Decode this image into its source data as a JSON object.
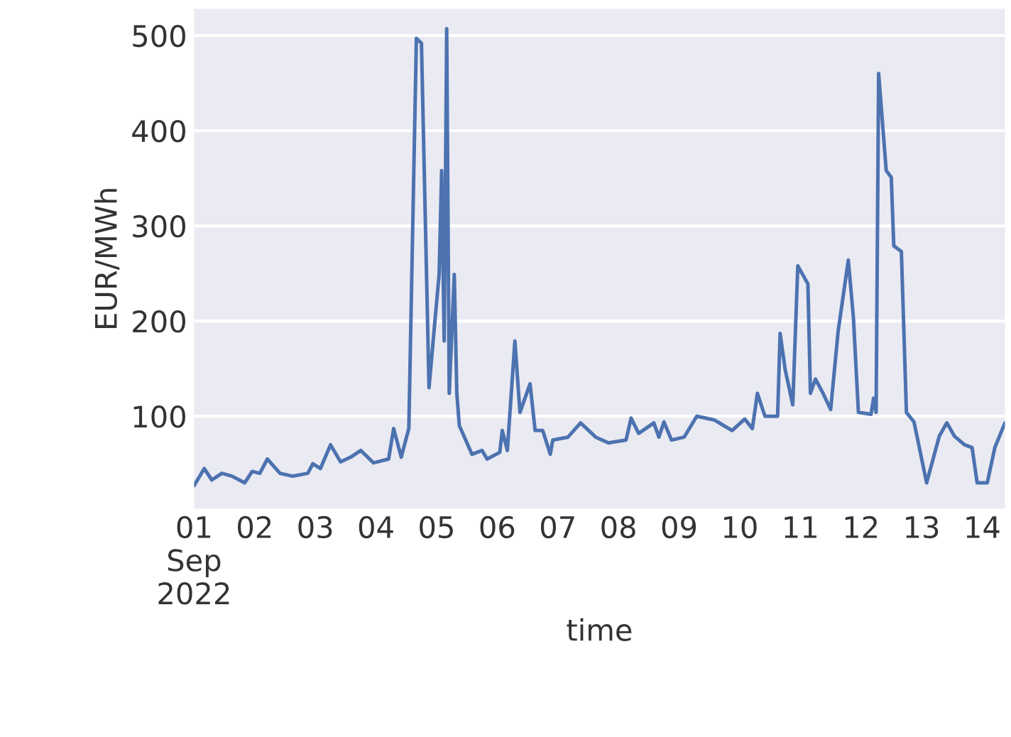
{
  "chart_data": {
    "type": "line",
    "xlabel": "time",
    "ylabel": "EUR/MWh",
    "grid": "y",
    "xlim": [
      "2022-09-01T00:00",
      "2022-09-14T09:00"
    ],
    "ylim": [
      3,
      528
    ],
    "yticks": [
      100,
      200,
      300,
      400,
      500
    ],
    "xticks": [
      {
        "value": "2022-09-01",
        "label": "01\nSep\n2022"
      },
      {
        "value": "2022-09-02",
        "label": "02"
      },
      {
        "value": "2022-09-03",
        "label": "03"
      },
      {
        "value": "2022-09-04",
        "label": "04"
      },
      {
        "value": "2022-09-05",
        "label": "05"
      },
      {
        "value": "2022-09-06",
        "label": "06"
      },
      {
        "value": "2022-09-07",
        "label": "07"
      },
      {
        "value": "2022-09-08",
        "label": "08"
      },
      {
        "value": "2022-09-09",
        "label": "09"
      },
      {
        "value": "2022-09-10",
        "label": "10"
      },
      {
        "value": "2022-09-11",
        "label": "11"
      },
      {
        "value": "2022-09-12",
        "label": "12"
      },
      {
        "value": "2022-09-13",
        "label": "13"
      },
      {
        "value": "2022-09-14",
        "label": "14"
      }
    ],
    "x": [
      "2022-09-01T00:00",
      "2022-09-01T04:00",
      "2022-09-01T07:00",
      "2022-09-01T11:00",
      "2022-09-01T15:00",
      "2022-09-01T20:00",
      "2022-09-01T23:00",
      "2022-09-02T02:00",
      "2022-09-02T05:00",
      "2022-09-02T10:00",
      "2022-09-02T15:00",
      "2022-09-02T21:00",
      "2022-09-02T23:00",
      "2022-09-03T02:00",
      "2022-09-03T06:00",
      "2022-09-03T10:00",
      "2022-09-03T14:00",
      "2022-09-03T18:00",
      "2022-09-03T23:00",
      "2022-09-04T05:00",
      "2022-09-04T07:00",
      "2022-09-04T10:00",
      "2022-09-04T13:00",
      "2022-09-04T16:00",
      "2022-09-04T18:00",
      "2022-09-04T21:00",
      "2022-09-04T23:00",
      "2022-09-05T01:00",
      "2022-09-05T02:00",
      "2022-09-05T03:00",
      "2022-09-05T04:00",
      "2022-09-05T05:00",
      "2022-09-05T07:00",
      "2022-09-05T08:00",
      "2022-09-05T09:00",
      "2022-09-05T14:00",
      "2022-09-05T18:00",
      "2022-09-05T20:00",
      "2022-09-06T01:00",
      "2022-09-06T02:00",
      "2022-09-06T04:00",
      "2022-09-06T07:00",
      "2022-09-06T09:00",
      "2022-09-06T13:00",
      "2022-09-06T15:00",
      "2022-09-06T18:00",
      "2022-09-06T21:00",
      "2022-09-06T22:00",
      "2022-09-07T04:00",
      "2022-09-07T09:00",
      "2022-09-07T15:00",
      "2022-09-07T20:00",
      "2022-09-08T03:00",
      "2022-09-08T05:00",
      "2022-09-08T08:00",
      "2022-09-08T14:00",
      "2022-09-08T16:00",
      "2022-09-08T18:00",
      "2022-09-08T21:00",
      "2022-09-09T02:00",
      "2022-09-09T07:00",
      "2022-09-09T14:00",
      "2022-09-09T21:00",
      "2022-09-10T02:00",
      "2022-09-10T05:00",
      "2022-09-10T07:00",
      "2022-09-10T10:00",
      "2022-09-10T15:00",
      "2022-09-10T16:00",
      "2022-09-10T18:00",
      "2022-09-10T21:00",
      "2022-09-10T23:00",
      "2022-09-11T03:00",
      "2022-09-11T04:00",
      "2022-09-11T06:00",
      "2022-09-11T09:00",
      "2022-09-11T12:00",
      "2022-09-11T15:00",
      "2022-09-11T19:00",
      "2022-09-11T21:00",
      "2022-09-11T23:00",
      "2022-09-12T04:00",
      "2022-09-12T05:00",
      "2022-09-12T06:00",
      "2022-09-12T07:00",
      "2022-09-12T10:00",
      "2022-09-12T12:00",
      "2022-09-12T13:00",
      "2022-09-12T16:00",
      "2022-09-12T18:00",
      "2022-09-12T21:00",
      "2022-09-13T02:00",
      "2022-09-13T07:00",
      "2022-09-13T10:00",
      "2022-09-13T13:00",
      "2022-09-13T17:00",
      "2022-09-13T20:00",
      "2022-09-13T22:00",
      "2022-09-14T02:00",
      "2022-09-14T05:00",
      "2022-09-14T09:00"
    ],
    "series": [
      {
        "color": "#4c72b0",
        "values": [
          27,
          45,
          33,
          40,
          37,
          30,
          42,
          40,
          55,
          40,
          37,
          40,
          50,
          45,
          70,
          52,
          57,
          64,
          51,
          55,
          87,
          57,
          87,
          497,
          492,
          130,
          190,
          249,
          358,
          179,
          507,
          124,
          249,
          124,
          90,
          60,
          64,
          55,
          62,
          85,
          64,
          179,
          104,
          134,
          85,
          85,
          60,
          75,
          78,
          93,
          78,
          72,
          75,
          98,
          82,
          93,
          78,
          94,
          75,
          78,
          100,
          96,
          85,
          97,
          87,
          124,
          100,
          100,
          187,
          149,
          112,
          258,
          239,
          124,
          139,
          124,
          107,
          190,
          264,
          204,
          104,
          102,
          119,
          104,
          460,
          358,
          351,
          279,
          273,
          104,
          94,
          30,
          79,
          93,
          79,
          70,
          67,
          30,
          30,
          67,
          93
        ]
      }
    ]
  }
}
